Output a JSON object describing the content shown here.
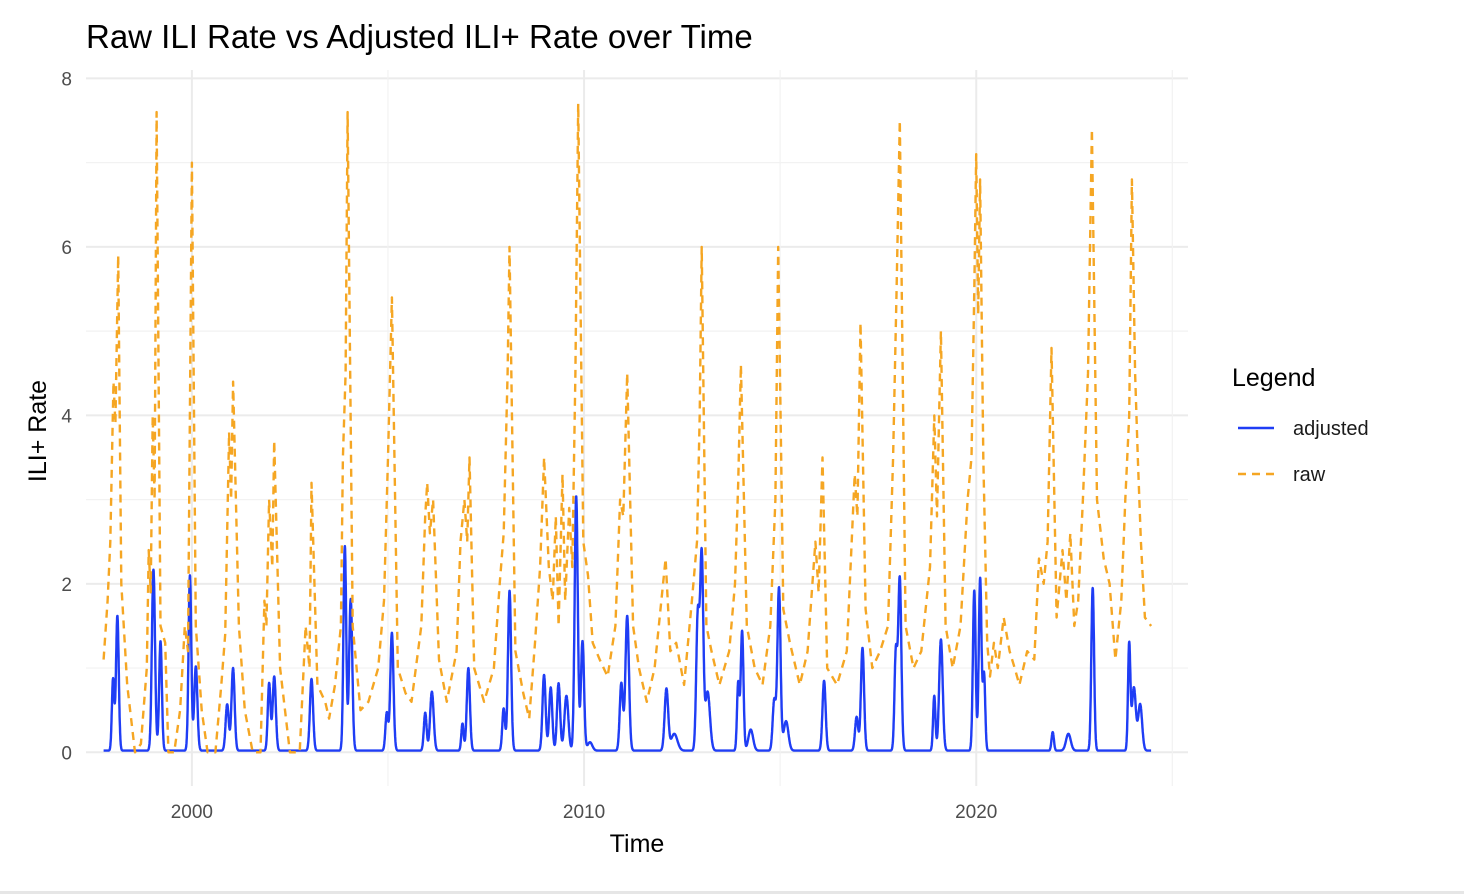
{
  "chart_data": {
    "type": "line",
    "title": "Raw ILI Rate vs Adjusted ILI+ Rate over Time",
    "xlabel": "Time",
    "ylabel": "ILI+ Rate",
    "xlim": [
      1997.3,
      2025.4
    ],
    "ylim": [
      -0.4,
      8.1
    ],
    "x_ticks": [
      2000,
      2010,
      2020
    ],
    "x_tick_labels": [
      "2000",
      "2010",
      "2020"
    ],
    "y_ticks": [
      0,
      2,
      4,
      6,
      8
    ],
    "y_tick_labels": [
      "0",
      "2",
      "4",
      "6",
      "8"
    ],
    "grid": true,
    "legend": {
      "title": "Legend",
      "position": "right",
      "entries": [
        {
          "label": "adjusted",
          "color": "#1f3df5",
          "linetype": "solid"
        },
        {
          "label": "raw",
          "color": "#f5a623",
          "linetype": "dashed"
        }
      ]
    },
    "series": [
      {
        "name": "adjusted",
        "color": "#1f3df5",
        "linetype": "solid",
        "baseline": 0.02,
        "start": 1997.75,
        "end": 2024.46,
        "peaks": [
          [
            1997.99,
            0.85,
            0.03
          ],
          [
            1998.1,
            1.6,
            0.035
          ],
          [
            1999.02,
            2.15,
            0.04
          ],
          [
            1999.2,
            1.3,
            0.035
          ],
          [
            1999.95,
            2.08,
            0.035
          ],
          [
            2000.1,
            1.0,
            0.04
          ],
          [
            2000.9,
            0.55,
            0.04
          ],
          [
            2001.05,
            0.98,
            0.04
          ],
          [
            2001.97,
            0.8,
            0.035
          ],
          [
            2002.1,
            0.88,
            0.04
          ],
          [
            2003.05,
            0.85,
            0.04
          ],
          [
            2003.9,
            2.43,
            0.035
          ],
          [
            2004.05,
            1.8,
            0.04
          ],
          [
            2004.97,
            0.45,
            0.035
          ],
          [
            2005.1,
            1.4,
            0.04
          ],
          [
            2005.95,
            0.45,
            0.035
          ],
          [
            2006.12,
            0.7,
            0.045
          ],
          [
            2006.9,
            0.32,
            0.03
          ],
          [
            2007.05,
            0.98,
            0.04
          ],
          [
            2007.95,
            0.5,
            0.035
          ],
          [
            2008.1,
            1.9,
            0.04
          ],
          [
            2008.98,
            0.9,
            0.04
          ],
          [
            2009.15,
            0.75,
            0.04
          ],
          [
            2009.35,
            0.8,
            0.04
          ],
          [
            2009.55,
            0.65,
            0.05
          ],
          [
            2009.8,
            3.02,
            0.04
          ],
          [
            2009.96,
            1.3,
            0.04
          ],
          [
            2010.15,
            0.1,
            0.06
          ],
          [
            2010.95,
            0.8,
            0.04
          ],
          [
            2011.1,
            1.6,
            0.045
          ],
          [
            2012.1,
            0.73,
            0.045
          ],
          [
            2012.3,
            0.2,
            0.08
          ],
          [
            2012.9,
            1.6,
            0.04
          ],
          [
            2013.0,
            2.3,
            0.04
          ],
          [
            2013.15,
            0.7,
            0.06
          ],
          [
            2013.93,
            0.8,
            0.03
          ],
          [
            2014.03,
            1.42,
            0.035
          ],
          [
            2014.25,
            0.25,
            0.06
          ],
          [
            2014.85,
            0.6,
            0.04
          ],
          [
            2014.97,
            1.93,
            0.04
          ],
          [
            2015.15,
            0.35,
            0.06
          ],
          [
            2016.12,
            0.83,
            0.04
          ],
          [
            2016.95,
            0.4,
            0.04
          ],
          [
            2017.1,
            1.22,
            0.04
          ],
          [
            2017.95,
            1.15,
            0.035
          ],
          [
            2018.05,
            2.05,
            0.04
          ],
          [
            2018.93,
            0.65,
            0.03
          ],
          [
            2019.1,
            1.32,
            0.045
          ],
          [
            2019.95,
            1.9,
            0.035
          ],
          [
            2020.1,
            2.05,
            0.035
          ],
          [
            2020.2,
            0.9,
            0.03
          ],
          [
            2021.95,
            0.22,
            0.03
          ],
          [
            2022.35,
            0.2,
            0.06
          ],
          [
            2022.97,
            1.93,
            0.035
          ],
          [
            2023.9,
            1.25,
            0.03
          ],
          [
            2024.02,
            0.75,
            0.05
          ],
          [
            2024.18,
            0.55,
            0.05
          ]
        ]
      },
      {
        "name": "raw",
        "color": "#f5a623",
        "linetype": "dashed",
        "points": [
          [
            1997.75,
            1.1
          ],
          [
            1997.85,
            1.8
          ],
          [
            1997.92,
            2.5
          ],
          [
            1998.0,
            4.4
          ],
          [
            1998.05,
            3.9
          ],
          [
            1998.12,
            5.9
          ],
          [
            1998.2,
            2.0
          ],
          [
            1998.35,
            0.8
          ],
          [
            1998.55,
            0.0
          ],
          [
            1998.7,
            0.1
          ],
          [
            1998.85,
            1.0
          ],
          [
            1998.9,
            2.4
          ],
          [
            1998.95,
            1.9
          ],
          [
            1999.0,
            4.0
          ],
          [
            1999.05,
            3.0
          ],
          [
            1999.1,
            7.6
          ],
          [
            1999.2,
            1.5
          ],
          [
            1999.32,
            1.3
          ],
          [
            1999.4,
            0.0
          ],
          [
            1999.55,
            0.0
          ],
          [
            1999.7,
            0.5
          ],
          [
            1999.82,
            1.5
          ],
          [
            1999.9,
            1.2
          ],
          [
            2000.0,
            7.0
          ],
          [
            2000.1,
            1.5
          ],
          [
            2000.25,
            0.5
          ],
          [
            2000.4,
            0.0
          ],
          [
            2000.6,
            0.0
          ],
          [
            2000.75,
            0.8
          ],
          [
            2000.85,
            1.4
          ],
          [
            2000.95,
            3.8
          ],
          [
            2001.0,
            3.0
          ],
          [
            2001.05,
            4.4
          ],
          [
            2001.2,
            1.5
          ],
          [
            2001.35,
            0.5
          ],
          [
            2001.55,
            0.0
          ],
          [
            2001.75,
            0.0
          ],
          [
            2001.85,
            1.8
          ],
          [
            2001.9,
            1.5
          ],
          [
            2001.97,
            3.0
          ],
          [
            2002.05,
            2.2
          ],
          [
            2002.1,
            3.7
          ],
          [
            2002.25,
            1.0
          ],
          [
            2002.5,
            0.0
          ],
          [
            2002.75,
            0.0
          ],
          [
            2002.9,
            1.5
          ],
          [
            2003.0,
            1.0
          ],
          [
            2003.05,
            3.2
          ],
          [
            2003.2,
            0.8
          ],
          [
            2003.4,
            0.6
          ],
          [
            2003.5,
            0.4
          ],
          [
            2003.65,
            0.8
          ],
          [
            2003.8,
            1.5
          ],
          [
            2003.85,
            3.5
          ],
          [
            2003.92,
            4.5
          ],
          [
            2003.97,
            7.6
          ],
          [
            2004.1,
            1.5
          ],
          [
            2004.3,
            0.5
          ],
          [
            2004.5,
            0.6
          ],
          [
            2004.75,
            1.0
          ],
          [
            2004.9,
            1.8
          ],
          [
            2005.0,
            3.5
          ],
          [
            2005.1,
            5.4
          ],
          [
            2005.25,
            1.0
          ],
          [
            2005.45,
            0.7
          ],
          [
            2005.6,
            0.6
          ],
          [
            2005.85,
            1.5
          ],
          [
            2005.95,
            2.8
          ],
          [
            2006.0,
            3.2
          ],
          [
            2006.07,
            2.6
          ],
          [
            2006.15,
            3.0
          ],
          [
            2006.3,
            1.1
          ],
          [
            2006.5,
            0.6
          ],
          [
            2006.75,
            1.2
          ],
          [
            2006.85,
            2.5
          ],
          [
            2006.95,
            3.0
          ],
          [
            2007.02,
            2.5
          ],
          [
            2007.08,
            3.5
          ],
          [
            2007.2,
            1.0
          ],
          [
            2007.45,
            0.6
          ],
          [
            2007.7,
            1.0
          ],
          [
            2007.85,
            2.0
          ],
          [
            2007.95,
            2.6
          ],
          [
            2008.05,
            4.5
          ],
          [
            2008.1,
            6.0
          ],
          [
            2008.25,
            1.2
          ],
          [
            2008.45,
            0.7
          ],
          [
            2008.6,
            0.4
          ],
          [
            2008.75,
            1.3
          ],
          [
            2008.88,
            2.2
          ],
          [
            2008.98,
            3.5
          ],
          [
            2009.1,
            2.2
          ],
          [
            2009.2,
            1.8
          ],
          [
            2009.28,
            2.8
          ],
          [
            2009.35,
            1.5
          ],
          [
            2009.45,
            3.3
          ],
          [
            2009.52,
            1.8
          ],
          [
            2009.62,
            2.9
          ],
          [
            2009.7,
            2.2
          ],
          [
            2009.78,
            4.5
          ],
          [
            2009.85,
            7.7
          ],
          [
            2009.98,
            2.5
          ],
          [
            2010.1,
            2.1
          ],
          [
            2010.22,
            1.3
          ],
          [
            2010.4,
            1.1
          ],
          [
            2010.6,
            0.9
          ],
          [
            2010.8,
            1.5
          ],
          [
            2010.92,
            3.0
          ],
          [
            2011.0,
            2.8
          ],
          [
            2011.1,
            4.5
          ],
          [
            2011.25,
            1.5
          ],
          [
            2011.4,
            1.0
          ],
          [
            2011.6,
            0.6
          ],
          [
            2011.8,
            1.0
          ],
          [
            2011.95,
            1.7
          ],
          [
            2012.08,
            2.3
          ],
          [
            2012.2,
            1.2
          ],
          [
            2012.35,
            1.3
          ],
          [
            2012.55,
            0.8
          ],
          [
            2012.75,
            1.8
          ],
          [
            2012.88,
            2.5
          ],
          [
            2012.95,
            4.0
          ],
          [
            2013.0,
            6.0
          ],
          [
            2013.12,
            1.5
          ],
          [
            2013.25,
            1.2
          ],
          [
            2013.45,
            0.8
          ],
          [
            2013.7,
            1.2
          ],
          [
            2013.85,
            2.0
          ],
          [
            2013.93,
            3.2
          ],
          [
            2014.0,
            4.6
          ],
          [
            2014.15,
            1.5
          ],
          [
            2014.35,
            1.0
          ],
          [
            2014.55,
            0.8
          ],
          [
            2014.75,
            1.5
          ],
          [
            2014.88,
            3.0
          ],
          [
            2014.95,
            6.0
          ],
          [
            2015.08,
            1.7
          ],
          [
            2015.25,
            1.3
          ],
          [
            2015.5,
            0.8
          ],
          [
            2015.7,
            1.2
          ],
          [
            2015.9,
            2.5
          ],
          [
            2015.98,
            1.9
          ],
          [
            2016.08,
            3.5
          ],
          [
            2016.2,
            1.0
          ],
          [
            2016.45,
            0.8
          ],
          [
            2016.7,
            1.2
          ],
          [
            2016.9,
            3.3
          ],
          [
            2016.97,
            2.8
          ],
          [
            2017.05,
            5.1
          ],
          [
            2017.18,
            1.7
          ],
          [
            2017.35,
            1.0
          ],
          [
            2017.55,
            1.2
          ],
          [
            2017.75,
            1.5
          ],
          [
            2017.88,
            3.5
          ],
          [
            2017.97,
            5.5
          ],
          [
            2018.05,
            7.5
          ],
          [
            2018.2,
            1.5
          ],
          [
            2018.4,
            1.0
          ],
          [
            2018.6,
            1.2
          ],
          [
            2018.82,
            2.2
          ],
          [
            2018.93,
            4.0
          ],
          [
            2019.0,
            2.8
          ],
          [
            2019.1,
            5.0
          ],
          [
            2019.22,
            1.5
          ],
          [
            2019.4,
            1.0
          ],
          [
            2019.6,
            1.5
          ],
          [
            2019.78,
            3.0
          ],
          [
            2019.88,
            3.5
          ],
          [
            2019.95,
            5.5
          ],
          [
            2020.0,
            7.1
          ],
          [
            2020.05,
            5.2
          ],
          [
            2020.1,
            6.8
          ],
          [
            2020.18,
            3.5
          ],
          [
            2020.28,
            1.3
          ],
          [
            2020.35,
            0.9
          ],
          [
            2020.45,
            1.3
          ],
          [
            2020.55,
            1.0
          ],
          [
            2020.7,
            1.6
          ],
          [
            2020.85,
            1.2
          ],
          [
            2020.98,
            1.0
          ],
          [
            2021.1,
            0.8
          ],
          [
            2021.3,
            1.2
          ],
          [
            2021.48,
            1.1
          ],
          [
            2021.6,
            2.3
          ],
          [
            2021.72,
            2.0
          ],
          [
            2021.82,
            2.5
          ],
          [
            2021.92,
            4.8
          ],
          [
            2022.05,
            1.6
          ],
          [
            2022.2,
            2.4
          ],
          [
            2022.3,
            1.8
          ],
          [
            2022.4,
            2.6
          ],
          [
            2022.5,
            1.5
          ],
          [
            2022.6,
            1.8
          ],
          [
            2022.72,
            3.0
          ],
          [
            2022.85,
            4.5
          ],
          [
            2022.95,
            7.4
          ],
          [
            2023.08,
            3.0
          ],
          [
            2023.25,
            2.3
          ],
          [
            2023.4,
            2.0
          ],
          [
            2023.55,
            1.1
          ],
          [
            2023.7,
            1.8
          ],
          [
            2023.8,
            3.0
          ],
          [
            2023.9,
            4.0
          ],
          [
            2023.97,
            6.8
          ],
          [
            2024.05,
            4.5
          ],
          [
            2024.12,
            3.5
          ],
          [
            2024.2,
            2.5
          ],
          [
            2024.3,
            1.6
          ],
          [
            2024.46,
            1.5
          ]
        ]
      }
    ]
  }
}
